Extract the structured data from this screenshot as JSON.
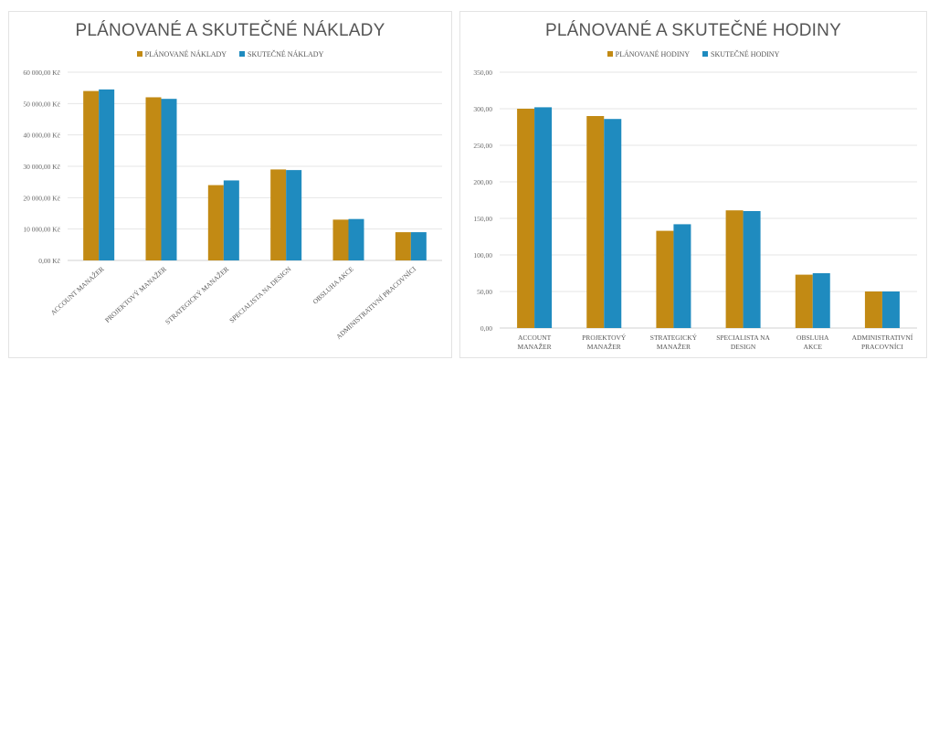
{
  "colors": {
    "planned": "#C28A14",
    "actual": "#1F8BBF",
    "grid": "#e6e6e6",
    "axis": "#d0d0d0"
  },
  "chart_data": [
    {
      "type": "bar",
      "title": "PLÁNOVANÉ A SKUTEČNÉ NÁKLADY",
      "categories": [
        "ACCOUNT MANAŽER",
        "PROJEKTOVÝ MANAŽER",
        "STRATEGICKÝ MANAŽER",
        "SPECIALISTA NA DESIGN",
        "OBSLUHA AKCE",
        "ADMINISTRATIVNÍ PRACOVNÍCI"
      ],
      "series": [
        {
          "name": "PLÁNOVANÉ NÁKLADY",
          "values": [
            54000,
            52000,
            24000,
            29000,
            13000,
            9000
          ]
        },
        {
          "name": "SKUTEČNÉ NÁKLADY",
          "values": [
            54500,
            51500,
            25500,
            28800,
            13200,
            9000
          ]
        }
      ],
      "ylim": [
        0,
        60000
      ],
      "yticks": [
        0,
        10000,
        20000,
        30000,
        40000,
        50000,
        60000
      ],
      "ytick_labels": [
        "0,00 Kč",
        "10 000,00 Kč",
        "20 000,00 Kč",
        "30 000,00 Kč",
        "40 000,00 Kč",
        "50 000,00 Kč",
        "60 000,00 Kč"
      ],
      "legend": "top",
      "grid": true
    },
    {
      "type": "bar",
      "title": "PLÁNOVANÉ A SKUTEČNÉ HODINY",
      "categories": [
        "ACCOUNT MANAŽER",
        "PROJEKTOVÝ MANAŽER",
        "STRATEGICKÝ MANAŽER",
        "SPECIALISTA NA DESIGN",
        "OBSLUHA AKCE",
        "ADMINISTRATIVNÍ PRACOVNÍCI"
      ],
      "series": [
        {
          "name": "PLÁNOVANÉ HODINY",
          "values": [
            300,
            290,
            133,
            161,
            73,
            50
          ]
        },
        {
          "name": "SKUTEČNÉ HODINY",
          "values": [
            302,
            286,
            142,
            160,
            75,
            50
          ]
        }
      ],
      "ylim": [
        0,
        350
      ],
      "yticks": [
        0,
        50,
        100,
        150,
        200,
        250,
        300,
        350
      ],
      "ytick_labels": [
        "0,00",
        "50,00",
        "100,00",
        "150,00",
        "200,00",
        "250,00",
        "300,00",
        "350,00"
      ],
      "legend": "top",
      "grid": true
    }
  ]
}
